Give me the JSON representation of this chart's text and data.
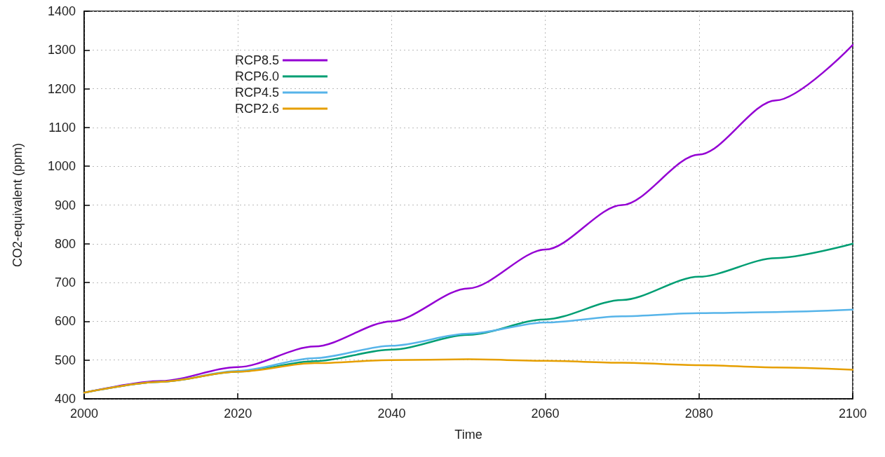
{
  "chart_data": {
    "type": "line",
    "xlabel": "Time",
    "ylabel": "CO2-equivalent (ppm)",
    "x": [
      2000,
      2010,
      2020,
      2030,
      2040,
      2050,
      2060,
      2070,
      2080,
      2090,
      2100
    ],
    "series": [
      {
        "name": "RCP8.5",
        "color": "#9400d3",
        "values": [
          416,
          446,
          482,
          535,
          600,
          685,
          785,
          900,
          1030,
          1170,
          1313
        ]
      },
      {
        "name": "RCP6.0",
        "color": "#009e73",
        "values": [
          416,
          444,
          470,
          497,
          527,
          565,
          605,
          655,
          715,
          763,
          800
        ]
      },
      {
        "name": "RCP4.5",
        "color": "#56b4e9",
        "values": [
          416,
          444,
          472,
          505,
          537,
          568,
          597,
          613,
          621,
          624,
          630
        ]
      },
      {
        "name": "RCP2.6",
        "color": "#e69f00",
        "values": [
          416,
          444,
          470,
          492,
          500,
          502,
          498,
          493,
          487,
          481,
          475
        ]
      }
    ],
    "xlim": [
      2000,
      2100
    ],
    "xticks": [
      2000,
      2020,
      2040,
      2060,
      2080,
      2100
    ],
    "ylim": [
      400,
      1400
    ],
    "yticks": [
      400,
      500,
      600,
      700,
      800,
      900,
      1000,
      1100,
      1200,
      1300,
      1400
    ],
    "grid": true,
    "legend": "top left",
    "marker": "none",
    "line_style": "solid"
  }
}
